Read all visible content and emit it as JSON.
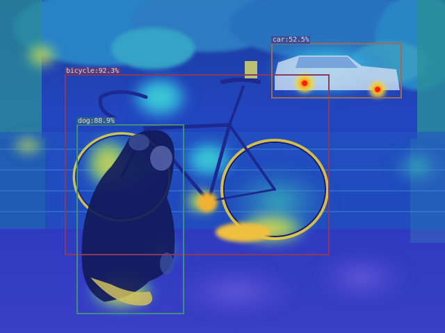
{
  "colors": {
    "bicycle_box": "#8a3a5e",
    "dog_box": "#3f8f7a",
    "car_box": "#a06a5a",
    "label_bg_bicycle": "#5a3a7a",
    "label_bg_dog": "#2f5f8a",
    "label_bg_car": "#3a4f9a"
  },
  "detections": [
    {
      "id": "bicycle",
      "label": "bicycle:92.3%"
    },
    {
      "id": "dog",
      "label": "dog:88.9%"
    },
    {
      "id": "car",
      "label": "car:52.5%"
    }
  ]
}
